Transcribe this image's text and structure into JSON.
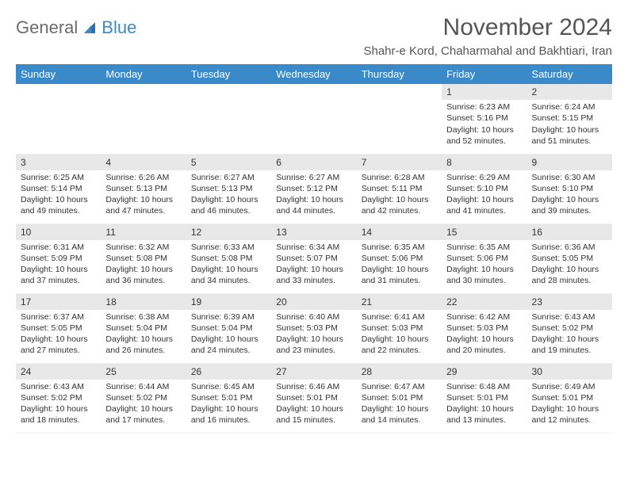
{
  "logo": {
    "text1": "General",
    "text2": "Blue"
  },
  "title": "November 2024",
  "location": "Shahr-e Kord, Chaharmahal and Bakhtiari, Iran",
  "colors": {
    "header_bg": "#3a8ac9",
    "header_text": "#ffffff",
    "daynum_bg": "#e8e8e8",
    "text": "#333333",
    "page_bg": "#ffffff"
  },
  "typography": {
    "title_fontsize": 30,
    "location_fontsize": 15,
    "dayhead_fontsize": 13,
    "cell_fontsize": 10.5
  },
  "columns": [
    "Sunday",
    "Monday",
    "Tuesday",
    "Wednesday",
    "Thursday",
    "Friday",
    "Saturday"
  ],
  "weeks": [
    [
      {
        "n": "",
        "sr": "",
        "ss": "",
        "dl": ""
      },
      {
        "n": "",
        "sr": "",
        "ss": "",
        "dl": ""
      },
      {
        "n": "",
        "sr": "",
        "ss": "",
        "dl": ""
      },
      {
        "n": "",
        "sr": "",
        "ss": "",
        "dl": ""
      },
      {
        "n": "",
        "sr": "",
        "ss": "",
        "dl": ""
      },
      {
        "n": "1",
        "sr": "Sunrise: 6:23 AM",
        "ss": "Sunset: 5:16 PM",
        "dl": "Daylight: 10 hours and 52 minutes."
      },
      {
        "n": "2",
        "sr": "Sunrise: 6:24 AM",
        "ss": "Sunset: 5:15 PM",
        "dl": "Daylight: 10 hours and 51 minutes."
      }
    ],
    [
      {
        "n": "3",
        "sr": "Sunrise: 6:25 AM",
        "ss": "Sunset: 5:14 PM",
        "dl": "Daylight: 10 hours and 49 minutes."
      },
      {
        "n": "4",
        "sr": "Sunrise: 6:26 AM",
        "ss": "Sunset: 5:13 PM",
        "dl": "Daylight: 10 hours and 47 minutes."
      },
      {
        "n": "5",
        "sr": "Sunrise: 6:27 AM",
        "ss": "Sunset: 5:13 PM",
        "dl": "Daylight: 10 hours and 46 minutes."
      },
      {
        "n": "6",
        "sr": "Sunrise: 6:27 AM",
        "ss": "Sunset: 5:12 PM",
        "dl": "Daylight: 10 hours and 44 minutes."
      },
      {
        "n": "7",
        "sr": "Sunrise: 6:28 AM",
        "ss": "Sunset: 5:11 PM",
        "dl": "Daylight: 10 hours and 42 minutes."
      },
      {
        "n": "8",
        "sr": "Sunrise: 6:29 AM",
        "ss": "Sunset: 5:10 PM",
        "dl": "Daylight: 10 hours and 41 minutes."
      },
      {
        "n": "9",
        "sr": "Sunrise: 6:30 AM",
        "ss": "Sunset: 5:10 PM",
        "dl": "Daylight: 10 hours and 39 minutes."
      }
    ],
    [
      {
        "n": "10",
        "sr": "Sunrise: 6:31 AM",
        "ss": "Sunset: 5:09 PM",
        "dl": "Daylight: 10 hours and 37 minutes."
      },
      {
        "n": "11",
        "sr": "Sunrise: 6:32 AM",
        "ss": "Sunset: 5:08 PM",
        "dl": "Daylight: 10 hours and 36 minutes."
      },
      {
        "n": "12",
        "sr": "Sunrise: 6:33 AM",
        "ss": "Sunset: 5:08 PM",
        "dl": "Daylight: 10 hours and 34 minutes."
      },
      {
        "n": "13",
        "sr": "Sunrise: 6:34 AM",
        "ss": "Sunset: 5:07 PM",
        "dl": "Daylight: 10 hours and 33 minutes."
      },
      {
        "n": "14",
        "sr": "Sunrise: 6:35 AM",
        "ss": "Sunset: 5:06 PM",
        "dl": "Daylight: 10 hours and 31 minutes."
      },
      {
        "n": "15",
        "sr": "Sunrise: 6:35 AM",
        "ss": "Sunset: 5:06 PM",
        "dl": "Daylight: 10 hours and 30 minutes."
      },
      {
        "n": "16",
        "sr": "Sunrise: 6:36 AM",
        "ss": "Sunset: 5:05 PM",
        "dl": "Daylight: 10 hours and 28 minutes."
      }
    ],
    [
      {
        "n": "17",
        "sr": "Sunrise: 6:37 AM",
        "ss": "Sunset: 5:05 PM",
        "dl": "Daylight: 10 hours and 27 minutes."
      },
      {
        "n": "18",
        "sr": "Sunrise: 6:38 AM",
        "ss": "Sunset: 5:04 PM",
        "dl": "Daylight: 10 hours and 26 minutes."
      },
      {
        "n": "19",
        "sr": "Sunrise: 6:39 AM",
        "ss": "Sunset: 5:04 PM",
        "dl": "Daylight: 10 hours and 24 minutes."
      },
      {
        "n": "20",
        "sr": "Sunrise: 6:40 AM",
        "ss": "Sunset: 5:03 PM",
        "dl": "Daylight: 10 hours and 23 minutes."
      },
      {
        "n": "21",
        "sr": "Sunrise: 6:41 AM",
        "ss": "Sunset: 5:03 PM",
        "dl": "Daylight: 10 hours and 22 minutes."
      },
      {
        "n": "22",
        "sr": "Sunrise: 6:42 AM",
        "ss": "Sunset: 5:03 PM",
        "dl": "Daylight: 10 hours and 20 minutes."
      },
      {
        "n": "23",
        "sr": "Sunrise: 6:43 AM",
        "ss": "Sunset: 5:02 PM",
        "dl": "Daylight: 10 hours and 19 minutes."
      }
    ],
    [
      {
        "n": "24",
        "sr": "Sunrise: 6:43 AM",
        "ss": "Sunset: 5:02 PM",
        "dl": "Daylight: 10 hours and 18 minutes."
      },
      {
        "n": "25",
        "sr": "Sunrise: 6:44 AM",
        "ss": "Sunset: 5:02 PM",
        "dl": "Daylight: 10 hours and 17 minutes."
      },
      {
        "n": "26",
        "sr": "Sunrise: 6:45 AM",
        "ss": "Sunset: 5:01 PM",
        "dl": "Daylight: 10 hours and 16 minutes."
      },
      {
        "n": "27",
        "sr": "Sunrise: 6:46 AM",
        "ss": "Sunset: 5:01 PM",
        "dl": "Daylight: 10 hours and 15 minutes."
      },
      {
        "n": "28",
        "sr": "Sunrise: 6:47 AM",
        "ss": "Sunset: 5:01 PM",
        "dl": "Daylight: 10 hours and 14 minutes."
      },
      {
        "n": "29",
        "sr": "Sunrise: 6:48 AM",
        "ss": "Sunset: 5:01 PM",
        "dl": "Daylight: 10 hours and 13 minutes."
      },
      {
        "n": "30",
        "sr": "Sunrise: 6:49 AM",
        "ss": "Sunset: 5:01 PM",
        "dl": "Daylight: 10 hours and 12 minutes."
      }
    ]
  ]
}
